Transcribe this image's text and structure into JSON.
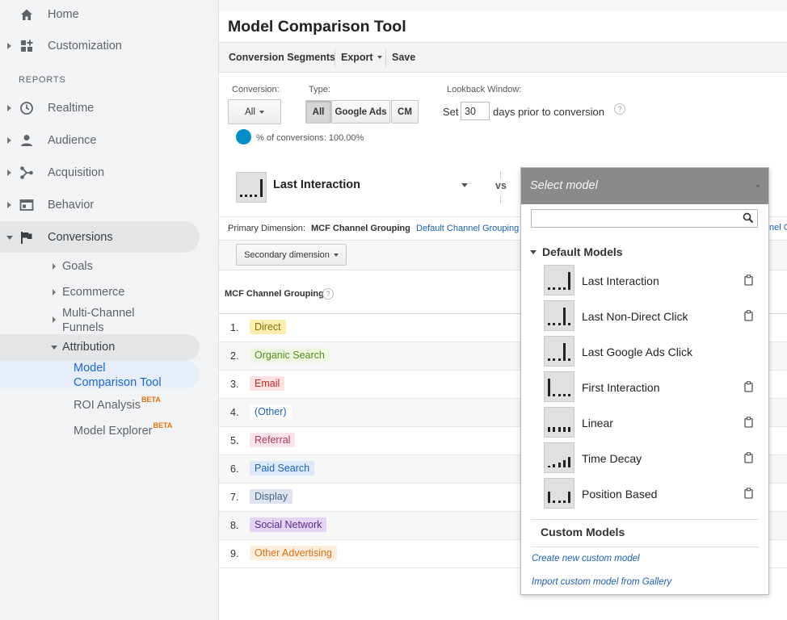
{
  "sidebar": {
    "home": "Home",
    "customization": "Customization",
    "reports_heading": "REPORTS",
    "realtime": "Realtime",
    "audience": "Audience",
    "acquisition": "Acquisition",
    "behavior": "Behavior",
    "conversions": "Conversions",
    "goals": "Goals",
    "ecommerce": "Ecommerce",
    "mcf_line1": "Multi-Channel",
    "mcf_line2": "Funnels",
    "attribution": "Attribution",
    "mct_line1": "Model",
    "mct_line2": "Comparison Tool",
    "roi": "ROI Analysis",
    "explorer": "Model Explorer",
    "beta": "BETA"
  },
  "header": {
    "title": "Model Comparison Tool"
  },
  "toolbar": {
    "segments": "Conversion Segments",
    "export": "Export",
    "save": "Save"
  },
  "controls": {
    "conversion_label": "Conversion:",
    "conversion_value": "All",
    "type_label": "Type:",
    "type_options": [
      "All",
      "Google Ads",
      "CM"
    ],
    "lookback_label": "Lookback Window:",
    "set": "Set",
    "lookback_days": "30",
    "days_text": "days prior to conversion",
    "help": "?",
    "percent_text": "% of conversions: 100.00%"
  },
  "model_selector": {
    "current": "Last Interaction",
    "vs": "vs"
  },
  "dimension": {
    "primary_label": "Primary Dimension:",
    "active": "MCF Channel Grouping",
    "link": "Default Channel Grouping",
    "link_cut": "nel G",
    "secondary": "Secondary dimension",
    "column": "MCF Channel Grouping"
  },
  "rows": [
    {
      "n": "1.",
      "label": "Direct",
      "bg": "#fbefb0",
      "fg": "#8a6d00"
    },
    {
      "n": "2.",
      "label": "Organic Search",
      "bg": "#eef7e1",
      "fg": "#4f8f1a"
    },
    {
      "n": "3.",
      "label": "Email",
      "bg": "#fbe1e1",
      "fg": "#c62828"
    },
    {
      "n": "4.",
      "label": "(Other)",
      "bg": "#ffffff",
      "fg": "#1a5fb4"
    },
    {
      "n": "5.",
      "label": "Referral",
      "bg": "#fbe3ea",
      "fg": "#ad3a5f"
    },
    {
      "n": "6.",
      "label": "Paid Search",
      "bg": "#dde9f8",
      "fg": "#1f63b6"
    },
    {
      "n": "7.",
      "label": "Display",
      "bg": "#dde4ef",
      "fg": "#4a6484"
    },
    {
      "n": "8.",
      "label": "Social Network",
      "bg": "#e3d4f3",
      "fg": "#5b2a8a"
    },
    {
      "n": "9.",
      "label": "Other Advertising",
      "bg": "#fdeedd",
      "fg": "#d9731a"
    }
  ],
  "panel": {
    "placeholder": "Select model",
    "default_heading": "Default Models",
    "models": [
      {
        "label": "Last Interaction",
        "copy": true
      },
      {
        "label": "Last Non-Direct Click",
        "copy": true
      },
      {
        "label": "Last Google Ads Click",
        "copy": false
      },
      {
        "label": "First Interaction",
        "copy": true
      },
      {
        "label": "Linear",
        "copy": true
      },
      {
        "label": "Time Decay",
        "copy": true
      },
      {
        "label": "Position Based",
        "copy": true
      }
    ],
    "custom_heading": "Custom Models",
    "create_link": "Create new custom model",
    "import_link": "Import custom model from Gallery"
  }
}
